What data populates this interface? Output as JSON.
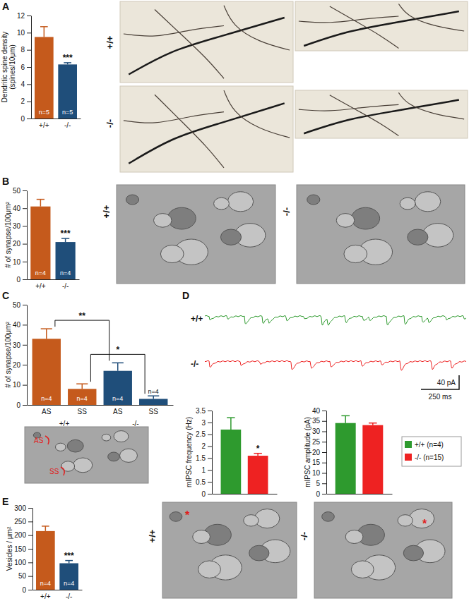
{
  "chart_data": [
    {
      "type": "bar",
      "ylabel": [
        "Dendritic spine density",
        "(spines/10μm)"
      ],
      "categories": [
        "+/+",
        "-/-"
      ],
      "values": [
        9.5,
        6.3
      ],
      "errors": [
        1.2,
        0.2
      ],
      "colors": [
        "#c55a1c",
        "#1f4e7a"
      ],
      "ylim": [
        0,
        12
      ],
      "yticks": [
        0,
        2,
        4,
        6,
        8,
        10,
        12
      ],
      "annotations": [
        {
          "text": "n=5",
          "kind": "inside",
          "category": 0
        },
        {
          "text": "n=5",
          "kind": "inside",
          "category": 1
        },
        {
          "text": "***",
          "kind": "above",
          "category": 1
        }
      ]
    },
    {
      "type": "bar",
      "ylabel": "# of synapse/100μm²",
      "categories": [
        "+/+",
        "-/-"
      ],
      "values": [
        41,
        21
      ],
      "errors": [
        4,
        2
      ],
      "colors": [
        "#c55a1c",
        "#1f4e7a"
      ],
      "ylim": [
        0,
        50
      ],
      "yticks": [
        0,
        10,
        20,
        30,
        40,
        50
      ],
      "annotations": [
        {
          "text": "n=4",
          "kind": "inside",
          "category": 0
        },
        {
          "text": "n=4",
          "kind": "inside",
          "category": 1
        },
        {
          "text": "***",
          "kind": "above",
          "category": 1
        }
      ]
    },
    {
      "type": "bar",
      "ylabel": "# of synapse/100μm²",
      "categories": [
        "AS",
        "SS",
        "AS",
        "SS"
      ],
      "group_labels": [
        "+/+",
        "-/-"
      ],
      "values": [
        33,
        8,
        17,
        3
      ],
      "errors": [
        5,
        2.5,
        4,
        1.5
      ],
      "colors": [
        "#c55a1c",
        "#c55a1c",
        "#1f4e7a",
        "#1f4e7a"
      ],
      "ylim": [
        0,
        50
      ],
      "yticks": [
        0,
        10,
        20,
        30,
        40,
        50
      ],
      "annotations": [
        {
          "text": "n=4",
          "kind": "inside",
          "category": 0
        },
        {
          "text": "n=4",
          "kind": "inside",
          "category": 1
        },
        {
          "text": "n=4",
          "kind": "inside",
          "category": 2
        },
        {
          "text": "n=4",
          "kind": "inside",
          "category": 3
        },
        {
          "text": "**",
          "kind": "bracket",
          "from": 0,
          "to": 2
        },
        {
          "text": "*",
          "kind": "bracket",
          "from": 1,
          "to": 3
        }
      ]
    },
    {
      "type": "bar",
      "ylabel": "mIPSC frequency (Hz)",
      "categories": [
        null
      ],
      "series": [
        {
          "color": "#2e9a2e",
          "values": [
            2.7
          ],
          "errors": [
            0.5
          ]
        },
        {
          "color": "#ee2222",
          "values": [
            1.6
          ],
          "errors": [
            0.1
          ]
        }
      ],
      "ylim": [
        0,
        3.5
      ],
      "yticks": [
        0,
        0.5,
        1,
        1.5,
        2,
        2.5,
        3,
        3.5
      ],
      "tick_labels": "y",
      "annotations": [
        {
          "text": "*",
          "kind": "above",
          "category": 0,
          "series": 1
        }
      ]
    },
    {
      "type": "bar",
      "ylabel": "mIPSC amplitude (pA)",
      "categories": [
        null
      ],
      "series": [
        {
          "name": "+/+ (n=4)",
          "color": "#2e9a2e",
          "values": [
            34
          ],
          "errors": [
            3.5
          ]
        },
        {
          "name": "-/- (n=15)",
          "color": "#ee2222",
          "values": [
            33
          ],
          "errors": [
            1
          ]
        }
      ],
      "ylim": [
        0,
        40
      ],
      "yticks": [
        0,
        5,
        10,
        15,
        20,
        25,
        30,
        35,
        40
      ],
      "tick_labels": "y",
      "legend": "right"
    },
    {
      "type": "bar",
      "ylabel": "Vesicles / μm²",
      "categories": [
        "+/+",
        "-/-"
      ],
      "values": [
        215,
        97
      ],
      "errors": [
        18,
        10
      ],
      "colors": [
        "#c55a1c",
        "#1f4e7a"
      ],
      "ylim": [
        0,
        300
      ],
      "yticks": [
        0,
        50,
        100,
        150,
        200,
        250,
        300
      ],
      "annotations": [
        {
          "text": "n=4",
          "kind": "inside",
          "category": 0
        },
        {
          "text": "n=4",
          "kind": "inside",
          "category": 1
        },
        {
          "text": "***",
          "kind": "above",
          "category": 1
        }
      ]
    }
  ],
  "figure": {
    "panel_labels": [
      "A",
      "B",
      "C",
      "D",
      "E"
    ],
    "image_labels": [
      "+/+",
      "-/-",
      "+/+",
      "-/-",
      "+/+",
      "-/-"
    ],
    "em_labels": [
      "AS",
      "SS"
    ],
    "image_markers": [
      "*",
      "*"
    ],
    "trace_labels": [
      "+/+",
      "-/-"
    ],
    "scale_bar": [
      "40 pA",
      "250 ms"
    ]
  }
}
